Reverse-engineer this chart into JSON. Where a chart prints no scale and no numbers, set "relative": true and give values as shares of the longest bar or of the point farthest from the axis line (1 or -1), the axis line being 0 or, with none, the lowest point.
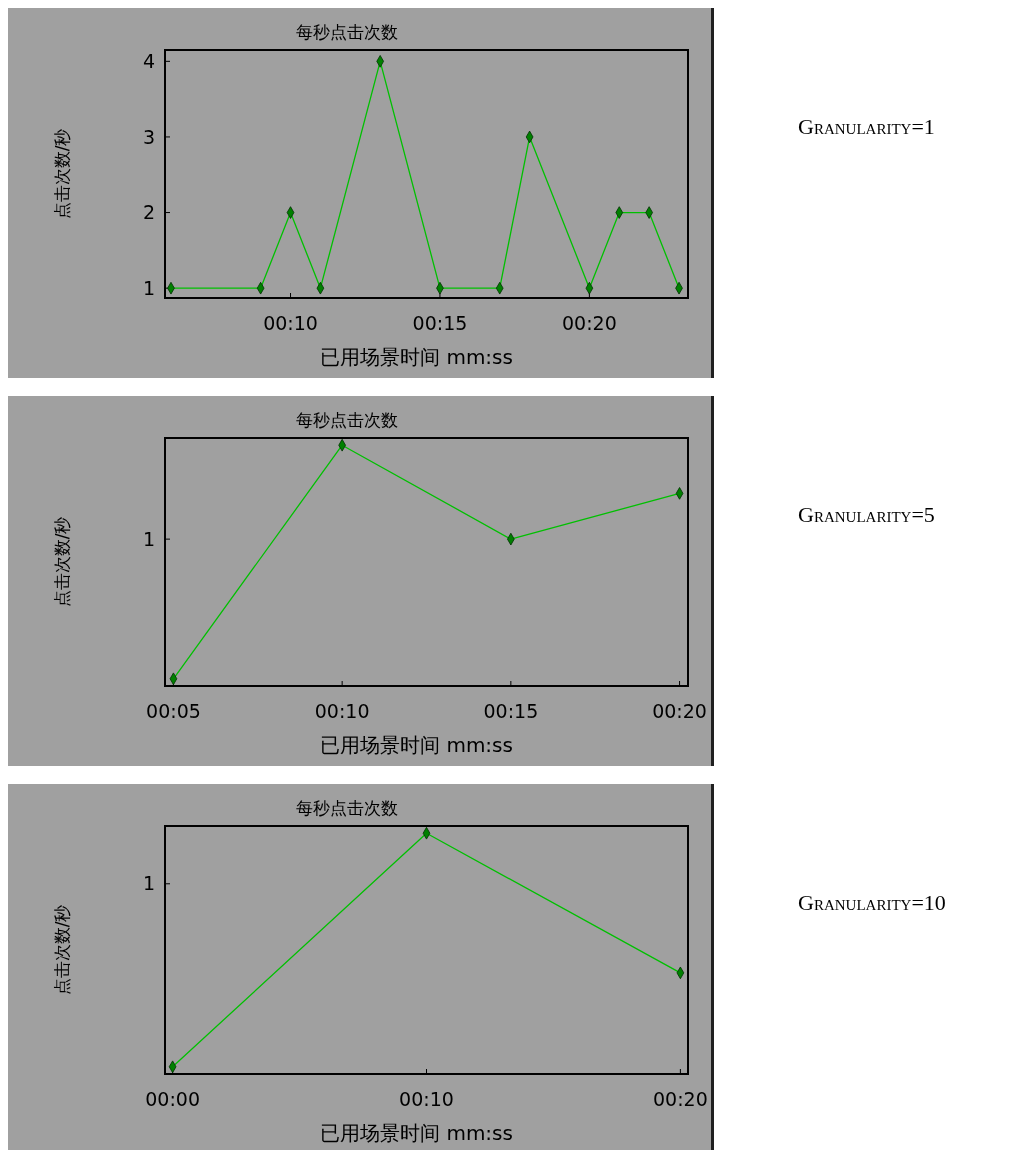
{
  "chart_data": [
    {
      "type": "line",
      "title": "每秒点击次数",
      "xlabel": "已用场景时间 mm:ss",
      "ylabel": "点击次数/秒",
      "x": [
        6,
        9,
        10,
        11,
        13,
        15,
        17,
        18,
        20,
        21,
        22,
        23
      ],
      "series": [
        {
          "color": "#00c000",
          "values": [
            1,
            1,
            2,
            1,
            4,
            1,
            1,
            3,
            1,
            2,
            2,
            1
          ]
        }
      ],
      "xlim": [
        5.8,
        23.3
      ],
      "xticks": [
        {
          "value": 10,
          "label": "00:10"
        },
        {
          "value": 15,
          "label": "00:15"
        },
        {
          "value": 20,
          "label": "00:20"
        }
      ],
      "ylim": [
        0.87,
        4.15
      ],
      "yticks": [
        1,
        2,
        3,
        4
      ],
      "marker": "diamond",
      "grid": false,
      "annotations": [
        "Granularity=1"
      ]
    },
    {
      "type": "line",
      "title": "每秒点击次数",
      "xlabel": "已用场景时间 mm:ss",
      "ylabel": "点击次数/秒",
      "relative": true,
      "x": [
        5,
        10,
        15,
        20
      ],
      "series": [
        {
          "color": "#00c000",
          "values": [
            0.03,
            1,
            0.61,
            0.8
          ]
        }
      ],
      "xlim": [
        4.75,
        20.25
      ],
      "xticks": [
        {
          "value": 5,
          "label": "00:05"
        },
        {
          "value": 10,
          "label": "00:10"
        },
        {
          "value": 15,
          "label": "00:15"
        },
        {
          "value": 20,
          "label": "00:20"
        }
      ],
      "marker": "diamond",
      "grid": false,
      "ref_lines": [
        {
          "axis": "y",
          "value": 0.61,
          "label": "1"
        }
      ],
      "annotations": [
        "Granularity=5"
      ]
    },
    {
      "type": "line",
      "title": "每秒点击次数",
      "xlabel": "已用场景时间 mm:ss",
      "ylabel": "点击次数/秒",
      "relative": true,
      "x": [
        0,
        10,
        20
      ],
      "series": [
        {
          "color": "#00c000",
          "values": [
            0.03,
            1,
            0.42
          ]
        }
      ],
      "xlim": [
        -0.3,
        20.3
      ],
      "xticks": [
        {
          "value": 0,
          "label": "00:00"
        },
        {
          "value": 10,
          "label": "00:10"
        },
        {
          "value": 20,
          "label": "00:20"
        }
      ],
      "marker": "diamond",
      "grid": false,
      "ref_lines": [
        {
          "axis": "y",
          "value": 0.79,
          "label": "1"
        }
      ],
      "annotations": [
        "Granularity=10"
      ]
    }
  ]
}
